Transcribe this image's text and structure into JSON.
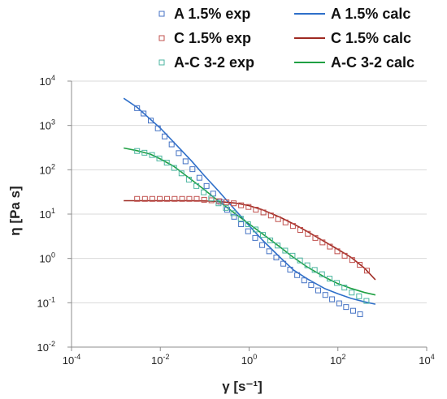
{
  "chart_data": {
    "type": "scatter",
    "title": "",
    "xlabel": "γ [s⁻¹]",
    "ylabel": "η [Pa s]",
    "x_scale": "log",
    "y_scale": "log",
    "xlim": [
      0.0001,
      10000
    ],
    "ylim": [
      0.01,
      10000
    ],
    "x_ticks": [
      {
        "value": 0.0001,
        "base": "10",
        "exp": "-4"
      },
      {
        "value": 0.01,
        "base": "10",
        "exp": "-2"
      },
      {
        "value": 1,
        "base": "10",
        "exp": "0"
      },
      {
        "value": 100,
        "base": "10",
        "exp": "2"
      },
      {
        "value": 10000,
        "base": "10",
        "exp": "4"
      }
    ],
    "y_ticks": [
      {
        "value": 0.01,
        "base": "10",
        "exp": "-2"
      },
      {
        "value": 0.1,
        "base": "10",
        "exp": "-1"
      },
      {
        "value": 1,
        "base": "10",
        "exp": "0"
      },
      {
        "value": 10,
        "base": "10",
        "exp": "1"
      },
      {
        "value": 100,
        "base": "10",
        "exp": "2"
      },
      {
        "value": 1000,
        "base": "10",
        "exp": "3"
      },
      {
        "value": 10000,
        "base": "10",
        "exp": "4"
      }
    ],
    "grid": "horizontal",
    "legend_position": "top",
    "series": [
      {
        "name": "A 1.5% exp",
        "kind": "marker",
        "color": "#4472C4",
        "points": [
          [
            0.003,
            2452
          ],
          [
            0.0042,
            1855
          ],
          [
            0.0061,
            1286
          ],
          [
            0.0088,
            861
          ],
          [
            0.0125,
            565
          ],
          [
            0.018,
            374
          ],
          [
            0.026,
            237
          ],
          [
            0.037,
            155
          ],
          [
            0.053,
            103
          ],
          [
            0.076,
            66
          ],
          [
            0.11,
            43
          ],
          [
            0.155,
            29
          ],
          [
            0.225,
            19
          ],
          [
            0.32,
            12.5
          ],
          [
            0.46,
            8.7
          ],
          [
            0.66,
            5.9
          ],
          [
            0.95,
            4.1
          ],
          [
            1.37,
            2.9
          ],
          [
            1.97,
            2.0
          ],
          [
            2.83,
            1.45
          ],
          [
            4.1,
            1.05
          ],
          [
            5.9,
            0.76
          ],
          [
            8.4,
            0.56
          ],
          [
            12.1,
            0.42
          ],
          [
            17.4,
            0.32
          ],
          [
            25,
            0.25
          ],
          [
            36,
            0.19
          ],
          [
            52,
            0.15
          ],
          [
            74,
            0.12
          ],
          [
            107,
            0.097
          ],
          [
            153,
            0.08
          ],
          [
            220,
            0.066
          ],
          [
            316,
            0.055
          ]
        ]
      },
      {
        "name": "C 1.5% exp",
        "kind": "marker",
        "color": "#C0504D",
        "points": [
          [
            0.003,
            22
          ],
          [
            0.0045,
            22
          ],
          [
            0.0066,
            22
          ],
          [
            0.0097,
            22
          ],
          [
            0.0142,
            22
          ],
          [
            0.021,
            22
          ],
          [
            0.031,
            22
          ],
          [
            0.045,
            22
          ],
          [
            0.066,
            22
          ],
          [
            0.097,
            21
          ],
          [
            0.142,
            20.5
          ],
          [
            0.21,
            19.5
          ],
          [
            0.31,
            18.5
          ],
          [
            0.45,
            17.5
          ],
          [
            0.66,
            15.8
          ],
          [
            0.97,
            14.5
          ],
          [
            1.42,
            12.6
          ],
          [
            2.1,
            10.9
          ],
          [
            3.1,
            9.3
          ],
          [
            4.5,
            7.7
          ],
          [
            6.6,
            6.5
          ],
          [
            9.7,
            5.4
          ],
          [
            14.2,
            4.4
          ],
          [
            21,
            3.6
          ],
          [
            31,
            2.9
          ],
          [
            45,
            2.3
          ],
          [
            66,
            1.85
          ],
          [
            97,
            1.45
          ],
          [
            142,
            1.15
          ],
          [
            210,
            0.92
          ],
          [
            310,
            0.72
          ],
          [
            450,
            0.53
          ]
        ]
      },
      {
        "name": "A-C 3-2 exp",
        "kind": "marker",
        "color": "#4BB5A0",
        "points": [
          [
            0.003,
            265
          ],
          [
            0.0044,
            242
          ],
          [
            0.0065,
            215
          ],
          [
            0.0095,
            180
          ],
          [
            0.014,
            145
          ],
          [
            0.0205,
            110
          ],
          [
            0.03,
            83
          ],
          [
            0.044,
            60
          ],
          [
            0.065,
            43
          ],
          [
            0.095,
            31
          ],
          [
            0.14,
            22.5
          ],
          [
            0.205,
            17.5
          ],
          [
            0.3,
            13.8
          ],
          [
            0.44,
            10.5
          ],
          [
            0.65,
            7.9
          ],
          [
            0.95,
            5.9
          ],
          [
            1.4,
            4.5
          ],
          [
            2.05,
            3.4
          ],
          [
            3,
            2.55
          ],
          [
            4.4,
            1.95
          ],
          [
            6.5,
            1.5
          ],
          [
            9.5,
            1.15
          ],
          [
            14,
            0.9
          ],
          [
            20.5,
            0.7
          ],
          [
            30,
            0.55
          ],
          [
            44,
            0.44
          ],
          [
            65,
            0.35
          ],
          [
            95,
            0.28
          ],
          [
            140,
            0.22
          ],
          [
            205,
            0.17
          ],
          [
            300,
            0.14
          ],
          [
            440,
            0.11
          ]
        ]
      },
      {
        "name": "A 1.5% calc",
        "kind": "line",
        "color": "#2E6FC9",
        "points": [
          [
            0.0015,
            4100
          ],
          [
            0.003,
            2550
          ],
          [
            0.006,
            1370
          ],
          [
            0.01,
            870
          ],
          [
            0.02,
            420
          ],
          [
            0.05,
            160
          ],
          [
            0.1,
            72
          ],
          [
            0.2,
            34
          ],
          [
            0.5,
            12
          ],
          [
            1,
            5.5
          ],
          [
            2,
            2.6
          ],
          [
            5,
            1.05
          ],
          [
            10,
            0.55
          ],
          [
            20,
            0.35
          ],
          [
            50,
            0.21
          ],
          [
            100,
            0.16
          ],
          [
            200,
            0.125
          ],
          [
            400,
            0.105
          ],
          [
            700,
            0.093
          ]
        ]
      },
      {
        "name": "C 1.5% calc",
        "kind": "line",
        "color": "#9E2A22",
        "points": [
          [
            0.0015,
            20
          ],
          [
            0.01,
            20
          ],
          [
            0.05,
            20
          ],
          [
            0.1,
            19.8
          ],
          [
            0.2,
            19.3
          ],
          [
            0.5,
            17.7
          ],
          [
            1,
            15.5
          ],
          [
            2,
            12.5
          ],
          [
            5,
            8.5
          ],
          [
            10,
            6
          ],
          [
            20,
            4.1
          ],
          [
            50,
            2.4
          ],
          [
            100,
            1.6
          ],
          [
            200,
            1.05
          ],
          [
            400,
            0.6
          ],
          [
            700,
            0.33
          ]
        ]
      },
      {
        "name": "A-C 3-2 calc",
        "kind": "line",
        "color": "#1FA043",
        "points": [
          [
            0.0015,
            310
          ],
          [
            0.003,
            270
          ],
          [
            0.006,
            225
          ],
          [
            0.01,
            175
          ],
          [
            0.02,
            120
          ],
          [
            0.05,
            60
          ],
          [
            0.1,
            35
          ],
          [
            0.2,
            20
          ],
          [
            0.5,
            10
          ],
          [
            1,
            6
          ],
          [
            2,
            3.6
          ],
          [
            5,
            1.8
          ],
          [
            10,
            1.05
          ],
          [
            20,
            0.65
          ],
          [
            50,
            0.38
          ],
          [
            100,
            0.27
          ],
          [
            200,
            0.21
          ],
          [
            400,
            0.17
          ],
          [
            700,
            0.15
          ]
        ]
      }
    ]
  }
}
